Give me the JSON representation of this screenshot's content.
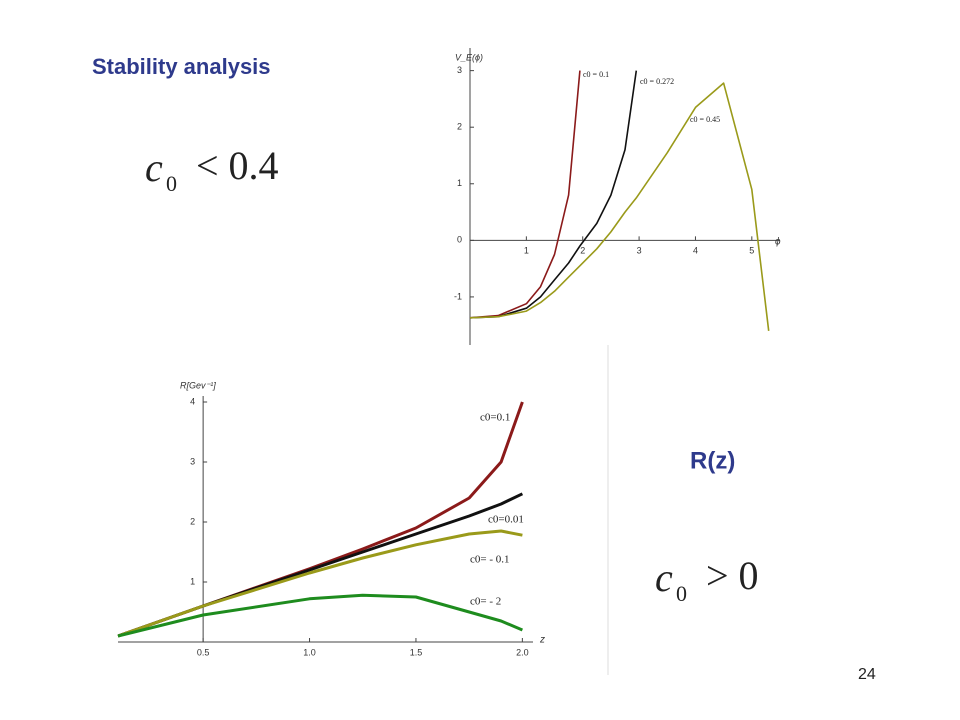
{
  "slide": {
    "title": "Stability analysis",
    "condition_left": {
      "symbol": "c",
      "subscript": "0",
      "relation": "< 0.4"
    },
    "right_label": "R(z)",
    "condition_right": {
      "symbol": "c",
      "subscript": "0",
      "relation": "> 0"
    },
    "page_number": "24"
  },
  "chart_data": [
    {
      "type": "line",
      "y_label": "V_E(ϕ)",
      "x_label": "ϕ",
      "x": [
        0,
        0.5,
        1,
        1.25,
        1.5,
        1.75,
        1.95,
        2.25,
        2.5,
        2.75,
        2.95,
        3.5,
        4,
        4.5,
        5,
        5.3
      ],
      "xlim": [
        0,
        5.5
      ],
      "ylim": [
        -1.85,
        3.4
      ],
      "xticks": [
        1,
        2,
        3,
        4,
        5
      ],
      "yticks": [
        -1,
        0,
        1,
        2,
        3
      ],
      "series": [
        {
          "name": "c0 = 0.1",
          "color": "#8b1a1a",
          "values": [
            -1.37,
            -1.33,
            -1.12,
            -0.82,
            -0.25,
            0.8,
            3.0,
            null,
            null,
            null,
            null,
            null,
            null,
            null,
            null,
            null
          ]
        },
        {
          "name": "c0 = 0.272",
          "color": "#111111",
          "values": [
            -1.37,
            -1.35,
            -1.2,
            -1.0,
            -0.7,
            -0.4,
            -0.1,
            0.3,
            0.8,
            1.6,
            3.0,
            null,
            null,
            null,
            null,
            null
          ]
        },
        {
          "name": "c0 = 0.45",
          "color": "#9a9a1a",
          "values": [
            -1.37,
            -1.35,
            -1.25,
            -1.1,
            -0.9,
            -0.65,
            -0.45,
            -0.15,
            0.15,
            0.5,
            0.75,
            1.55,
            2.35,
            2.78,
            0.9,
            -1.6
          ]
        }
      ]
    },
    {
      "type": "line",
      "y_label": "R[Gev⁻¹]",
      "x_label": "z",
      "x": [
        0.1,
        0.5,
        1.0,
        1.25,
        1.5,
        1.75,
        1.9,
        2.0
      ],
      "xlim": [
        0.1,
        2.05
      ],
      "ylim": [
        0,
        4.1
      ],
      "xticks": [
        0.5,
        {
          "value": 1.0,
          "label": "1.0"
        },
        1.5,
        {
          "value": 2.0,
          "label": "2.0"
        }
      ],
      "yticks": [
        1,
        2,
        3,
        4
      ],
      "series": [
        {
          "name": "c0=0.1",
          "color": "#8b1a1a",
          "values": [
            0.1,
            0.6,
            1.22,
            1.55,
            1.9,
            2.4,
            3.0,
            4.0
          ]
        },
        {
          "name": "c0=0.01",
          "color": "#111111",
          "values": [
            0.1,
            0.6,
            1.2,
            1.5,
            1.8,
            2.1,
            2.3,
            2.47
          ]
        },
        {
          "name": "c0= - 0.1",
          "color": "#9a9a1a",
          "values": [
            0.1,
            0.6,
            1.15,
            1.4,
            1.62,
            1.8,
            1.85,
            1.78
          ]
        },
        {
          "name": "c0= - 2",
          "color": "#1e8c1e",
          "values": [
            0.1,
            0.45,
            0.72,
            0.78,
            0.75,
            0.5,
            0.35,
            0.2
          ]
        }
      ]
    }
  ]
}
